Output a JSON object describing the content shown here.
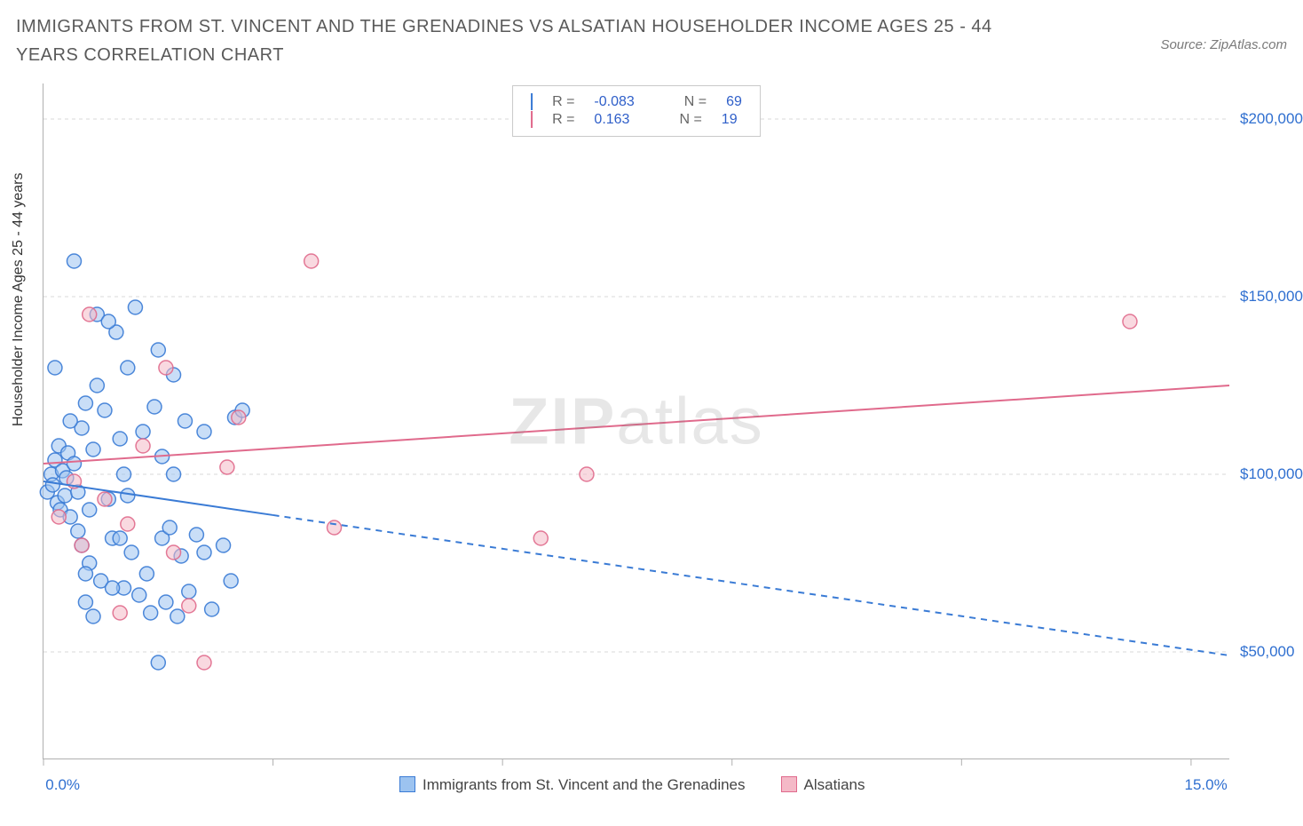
{
  "title": "IMMIGRANTS FROM ST. VINCENT AND THE GRENADINES VS ALSATIAN HOUSEHOLDER INCOME AGES 25 - 44 YEARS CORRELATION CHART",
  "source": "Source: ZipAtlas.com",
  "watermark_bold": "ZIP",
  "watermark_rest": "atlas",
  "ylabel": "Householder Income Ages 25 - 44 years",
  "chart": {
    "type": "scatter",
    "background_color": "#ffffff",
    "grid_color": "#d9d9d9",
    "axis_color": "#b0b0b0",
    "tick_label_color": "#2f6fd0",
    "x": {
      "min": 0,
      "max": 15.5,
      "ticks": [
        0,
        3,
        6,
        9,
        12,
        15
      ],
      "tick_labels": {
        "0": "0.0%",
        "15": "15.0%"
      }
    },
    "y": {
      "min": 20000,
      "max": 210000,
      "ticks": [
        50000,
        100000,
        150000,
        200000
      ],
      "tick_labels": {
        "50000": "$50,000",
        "100000": "$100,000",
        "150000": "$150,000",
        "200000": "$200,000"
      }
    },
    "marker_radius": 8,
    "marker_opacity": 0.55,
    "marker_stroke_width": 1.5,
    "series": [
      {
        "id": "svg_series",
        "label": "Immigrants from St. Vincent and the Grenadines",
        "fill": "#9cc3f0",
        "stroke": "#3a7bd5",
        "R": "-0.083",
        "N": "69",
        "trend": {
          "y_at_x0": 98000,
          "y_at_xmax": 49000,
          "solid_until_x": 3.0,
          "width": 2
        },
        "points": [
          [
            0.05,
            95000
          ],
          [
            0.1,
            100000
          ],
          [
            0.12,
            97000
          ],
          [
            0.15,
            104000
          ],
          [
            0.18,
            92000
          ],
          [
            0.2,
            108000
          ],
          [
            0.22,
            90000
          ],
          [
            0.25,
            101000
          ],
          [
            0.28,
            94000
          ],
          [
            0.3,
            99000
          ],
          [
            0.32,
            106000
          ],
          [
            0.35,
            88000
          ],
          [
            0.15,
            130000
          ],
          [
            0.4,
            103000
          ],
          [
            0.45,
            84000
          ],
          [
            0.5,
            113000
          ],
          [
            0.5,
            80000
          ],
          [
            0.55,
            120000
          ],
          [
            0.6,
            75000
          ],
          [
            0.65,
            107000
          ],
          [
            0.7,
            125000
          ],
          [
            0.75,
            70000
          ],
          [
            0.4,
            160000
          ],
          [
            0.8,
            118000
          ],
          [
            0.85,
            93000
          ],
          [
            0.9,
            82000
          ],
          [
            0.95,
            140000
          ],
          [
            1.0,
            110000
          ],
          [
            1.05,
            68000
          ],
          [
            1.1,
            130000
          ],
          [
            1.15,
            78000
          ],
          [
            1.2,
            147000
          ],
          [
            1.25,
            66000
          ],
          [
            1.3,
            112000
          ],
          [
            1.35,
            72000
          ],
          [
            1.4,
            61000
          ],
          [
            1.45,
            119000
          ],
          [
            1.5,
            135000
          ],
          [
            0.7,
            145000
          ],
          [
            1.55,
            105000
          ],
          [
            1.55,
            82000
          ],
          [
            1.6,
            64000
          ],
          [
            1.65,
            85000
          ],
          [
            1.7,
            128000
          ],
          [
            1.75,
            60000
          ],
          [
            1.8,
            77000
          ],
          [
            1.85,
            115000
          ],
          [
            1.9,
            67000
          ],
          [
            2.0,
            83000
          ],
          [
            2.1,
            78000
          ],
          [
            2.2,
            62000
          ],
          [
            2.35,
            80000
          ],
          [
            2.1,
            112000
          ],
          [
            2.45,
            70000
          ],
          [
            2.5,
            116000
          ],
          [
            2.6,
            118000
          ],
          [
            1.0,
            82000
          ],
          [
            1.05,
            100000
          ],
          [
            1.7,
            100000
          ],
          [
            1.1,
            94000
          ],
          [
            0.6,
            90000
          ],
          [
            0.35,
            115000
          ],
          [
            0.85,
            143000
          ],
          [
            0.45,
            95000
          ],
          [
            0.9,
            68000
          ],
          [
            0.65,
            60000
          ],
          [
            1.5,
            47000
          ],
          [
            0.55,
            64000
          ],
          [
            0.55,
            72000
          ]
        ]
      },
      {
        "id": "als_series",
        "label": "Alsatians",
        "fill": "#f4b9c7",
        "stroke": "#e06a8c",
        "R": "0.163",
        "N": "19",
        "trend": {
          "y_at_x0": 103000,
          "y_at_xmax": 125000,
          "solid_until_x": 15.5,
          "width": 2
        },
        "points": [
          [
            0.2,
            88000
          ],
          [
            0.4,
            98000
          ],
          [
            0.5,
            80000
          ],
          [
            0.6,
            145000
          ],
          [
            0.8,
            93000
          ],
          [
            1.0,
            61000
          ],
          [
            1.1,
            86000
          ],
          [
            1.3,
            108000
          ],
          [
            1.6,
            130000
          ],
          [
            1.7,
            78000
          ],
          [
            1.9,
            63000
          ],
          [
            2.1,
            47000
          ],
          [
            2.4,
            102000
          ],
          [
            2.55,
            116000
          ],
          [
            3.5,
            160000
          ],
          [
            3.8,
            85000
          ],
          [
            6.5,
            82000
          ],
          [
            7.1,
            100000
          ],
          [
            14.2,
            143000
          ]
        ]
      }
    ]
  },
  "legend_top": {
    "r_label": "R =",
    "n_label": "N ="
  },
  "legend_bottom": {
    "xtick_left": "0.0%",
    "xtick_right": "15.0%"
  }
}
